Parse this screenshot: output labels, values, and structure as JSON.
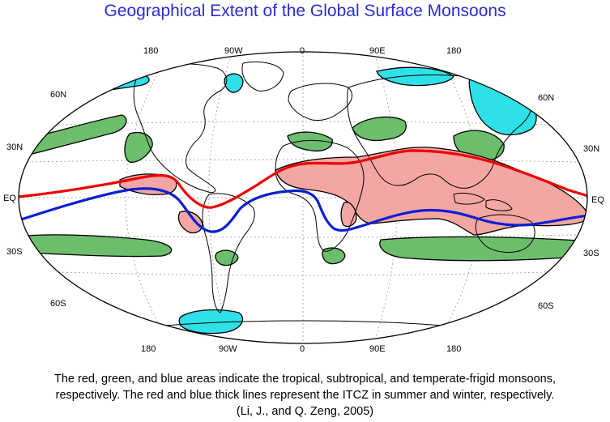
{
  "title": "Geographical Extent of the Global Surface Monsoons",
  "map": {
    "projection_outline": "ellipse",
    "top_longitude_labels": [
      "180",
      "90W",
      "0",
      "90E",
      "180"
    ],
    "bottom_longitude_labels": [
      "180",
      "90W",
      "0",
      "90E",
      "180"
    ],
    "left_latitude_labels": [
      "60N",
      "30N",
      "EQ",
      "30S",
      "60S"
    ],
    "right_latitude_labels": [
      "60N",
      "30N",
      "EQ",
      "30S",
      "60S"
    ],
    "legend_colors": {
      "tropical": "#f4a6a3",
      "subtropical": "#6cbd6c",
      "temperate_frigid": "#2fe0e8",
      "summer_itcz": "#ee0000",
      "winter_itcz": "#0a1fd0"
    }
  },
  "caption": {
    "line1": "The red, green, and blue areas indicate the tropical, subtropical, and temperate-frigid monsoons,",
    "line2": "respectively.  The red and blue thick lines represent the ITCZ in summer and winter, respectively.",
    "line3": "(Li, J., and Q. Zeng, 2005)"
  }
}
